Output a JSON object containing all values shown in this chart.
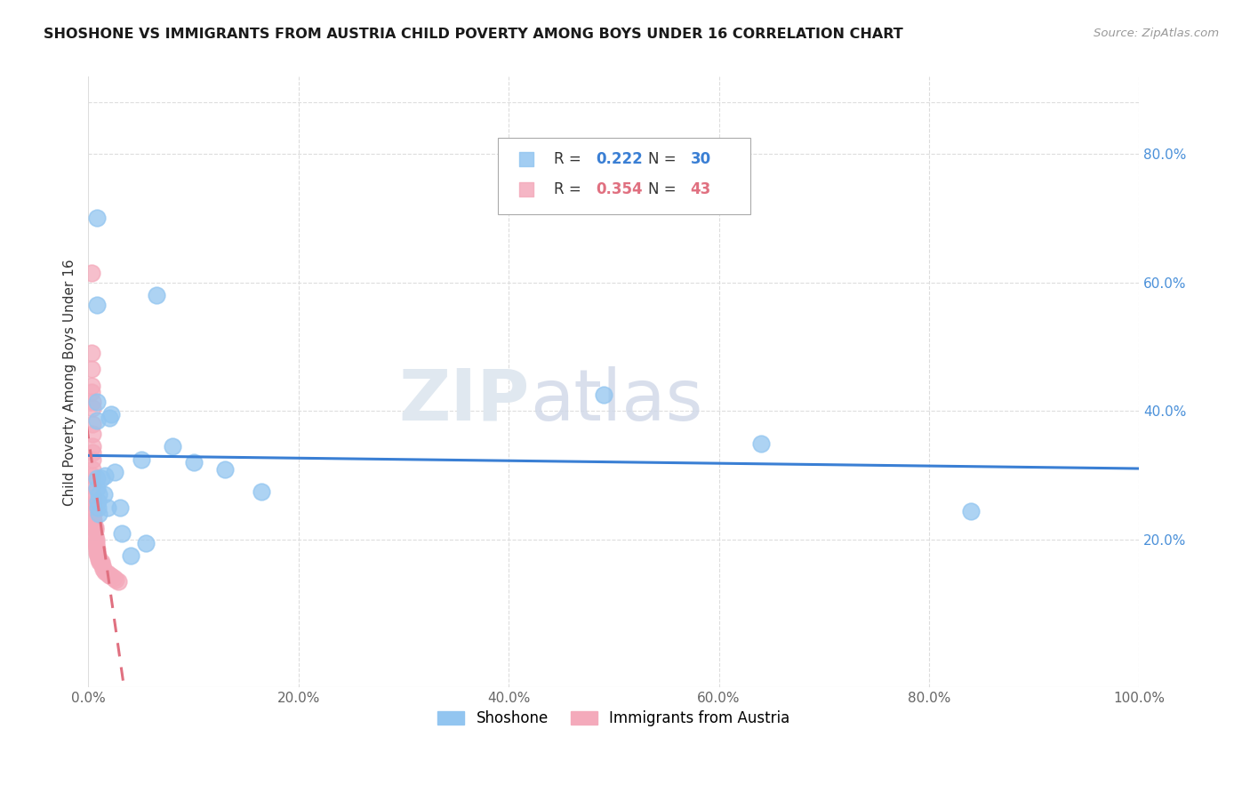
{
  "title": "SHOSHONE VS IMMIGRANTS FROM AUSTRIA CHILD POVERTY AMONG BOYS UNDER 16 CORRELATION CHART",
  "source": "Source: ZipAtlas.com",
  "ylabel": "Child Poverty Among Boys Under 16",
  "shoshone_color": "#92C5F0",
  "shoshone_edge_color": "#92C5F0",
  "austria_color": "#F4AABB",
  "austria_edge_color": "#F4AABB",
  "shoshone_line_color": "#3A7FD4",
  "austria_line_color": "#E07080",
  "bottom_legend_1": "Shoshone",
  "bottom_legend_2": "Immigrants from Austria",
  "watermark_zip": "ZIP",
  "watermark_atlas": "atlas",
  "background_color": "#FFFFFF",
  "grid_color": "#DDDDDD",
  "right_tick_color": "#4A90D9",
  "shoshone_x": [
    0.008,
    0.008,
    0.008,
    0.008,
    0.008,
    0.008,
    0.009,
    0.009,
    0.01,
    0.01,
    0.012,
    0.015,
    0.016,
    0.018,
    0.02,
    0.022,
    0.025,
    0.03,
    0.032,
    0.04,
    0.05,
    0.055,
    0.065,
    0.08,
    0.1,
    0.13,
    0.165,
    0.49,
    0.64,
    0.84
  ],
  "shoshone_y": [
    0.7,
    0.565,
    0.415,
    0.385,
    0.295,
    0.28,
    0.26,
    0.25,
    0.27,
    0.24,
    0.295,
    0.27,
    0.3,
    0.25,
    0.39,
    0.395,
    0.305,
    0.25,
    0.21,
    0.175,
    0.325,
    0.195,
    0.58,
    0.345,
    0.32,
    0.31,
    0.275,
    0.425,
    0.35,
    0.245
  ],
  "austria_x": [
    0.003,
    0.003,
    0.003,
    0.003,
    0.003,
    0.004,
    0.004,
    0.004,
    0.004,
    0.004,
    0.004,
    0.004,
    0.004,
    0.004,
    0.004,
    0.004,
    0.005,
    0.005,
    0.005,
    0.005,
    0.005,
    0.005,
    0.006,
    0.006,
    0.006,
    0.007,
    0.007,
    0.007,
    0.008,
    0.008,
    0.009,
    0.01,
    0.011,
    0.012,
    0.013,
    0.014,
    0.016,
    0.018,
    0.02,
    0.022,
    0.024,
    0.026,
    0.028
  ],
  "austria_y": [
    0.615,
    0.49,
    0.465,
    0.44,
    0.43,
    0.415,
    0.405,
    0.38,
    0.365,
    0.345,
    0.335,
    0.325,
    0.31,
    0.3,
    0.285,
    0.27,
    0.265,
    0.255,
    0.245,
    0.24,
    0.23,
    0.225,
    0.22,
    0.215,
    0.205,
    0.2,
    0.195,
    0.19,
    0.185,
    0.18,
    0.175,
    0.17,
    0.165,
    0.165,
    0.16,
    0.155,
    0.15,
    0.148,
    0.145,
    0.143,
    0.14,
    0.138,
    0.135
  ],
  "xlim": [
    0.0,
    1.0
  ],
  "ylim": [
    -0.03,
    0.92
  ],
  "xticks": [
    0.0,
    0.2,
    0.4,
    0.6,
    0.8,
    1.0
  ],
  "xtick_labels": [
    "0.0%",
    "20.0%",
    "40.0%",
    "60.0%",
    "80.0%",
    "100.0%"
  ],
  "right_yticks": [
    0.2,
    0.4,
    0.6,
    0.8
  ],
  "right_ytick_labels": [
    "20.0%",
    "40.0%",
    "60.0%",
    "80.0%"
  ],
  "legend_r1": "R = ",
  "legend_v1": "0.222",
  "legend_n1_label": "N = ",
  "legend_n1": "30",
  "legend_r2": "R = ",
  "legend_v2": "0.354",
  "legend_n2_label": "N = ",
  "legend_n2": "43"
}
